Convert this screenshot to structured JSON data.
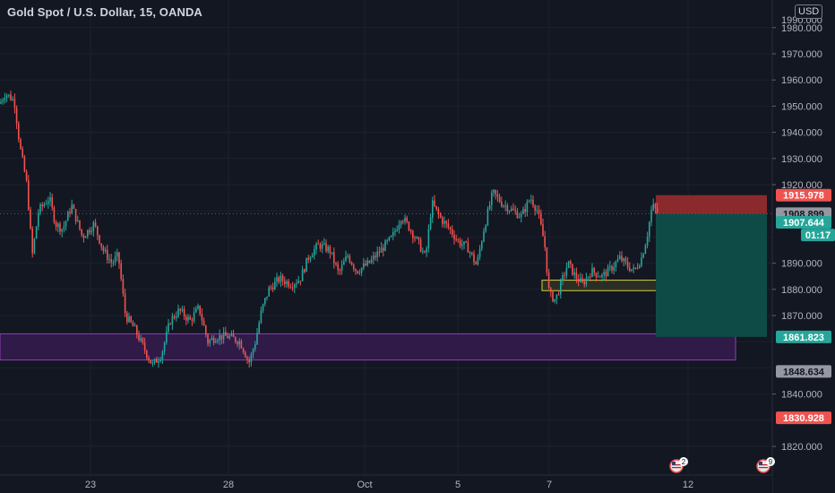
{
  "header": {
    "title": "Gold Spot / U.S. Dollar, 15, OANDA",
    "currency": "USD"
  },
  "colors": {
    "background": "#131722",
    "grid": "#1c2030",
    "up": "#26a69a",
    "down": "#ef5350",
    "stop_zone": "#8b2a2d",
    "target_zone": "#0e4b47",
    "support_zone": "#2f1a48",
    "support_border": "#8d3fb5",
    "entry_zone_border": "#d4d23a"
  },
  "chart_data": {
    "type": "candlestick",
    "symbol": "Gold Spot / U.S. Dollar",
    "interval": "15",
    "source": "OANDA",
    "ylim": [
      1812,
      1982
    ],
    "y_ticks": [
      1820,
      1830,
      1840,
      1850,
      1860,
      1870,
      1880,
      1890,
      1900,
      1910,
      1920,
      1930,
      1940,
      1950,
      1960,
      1970,
      1980
    ],
    "y_tick_labels": [
      "1820.000",
      "",
      "1840.000",
      "",
      "",
      "1870.000",
      "1880.000",
      "1890.000",
      "",
      "",
      "1920.000",
      "1930.000",
      "1940.000",
      "1950.000",
      "1960.000",
      "1970.000",
      "1980.000"
    ],
    "x_tick_labels": [
      "23",
      "28",
      "Oct",
      "5",
      "7",
      "12"
    ],
    "price_path": [
      {
        "t": 0,
        "p": 1951
      },
      {
        "t": 6,
        "p": 1955
      },
      {
        "t": 16,
        "p": 1952
      },
      {
        "t": 22,
        "p": 1935
      },
      {
        "t": 30,
        "p": 1920
      },
      {
        "t": 36,
        "p": 1893
      },
      {
        "t": 43,
        "p": 1910
      },
      {
        "t": 55,
        "p": 1915
      },
      {
        "t": 62,
        "p": 1905
      },
      {
        "t": 70,
        "p": 1903
      },
      {
        "t": 80,
        "p": 1912
      },
      {
        "t": 92,
        "p": 1900
      },
      {
        "t": 105,
        "p": 1905
      },
      {
        "t": 115,
        "p": 1895
      },
      {
        "t": 125,
        "p": 1890
      },
      {
        "t": 132,
        "p": 1893
      },
      {
        "t": 140,
        "p": 1870
      },
      {
        "t": 150,
        "p": 1865
      },
      {
        "t": 160,
        "p": 1858
      },
      {
        "t": 170,
        "p": 1851
      },
      {
        "t": 180,
        "p": 1855
      },
      {
        "t": 190,
        "p": 1868
      },
      {
        "t": 200,
        "p": 1872
      },
      {
        "t": 212,
        "p": 1868
      },
      {
        "t": 222,
        "p": 1873
      },
      {
        "t": 232,
        "p": 1860
      },
      {
        "t": 242,
        "p": 1862
      },
      {
        "t": 255,
        "p": 1862
      },
      {
        "t": 268,
        "p": 1860
      },
      {
        "t": 278,
        "p": 1852
      },
      {
        "t": 285,
        "p": 1860
      },
      {
        "t": 292,
        "p": 1872
      },
      {
        "t": 300,
        "p": 1880
      },
      {
        "t": 312,
        "p": 1884
      },
      {
        "t": 325,
        "p": 1882
      },
      {
        "t": 335,
        "p": 1884
      },
      {
        "t": 345,
        "p": 1893
      },
      {
        "t": 356,
        "p": 1897
      },
      {
        "t": 368,
        "p": 1895
      },
      {
        "t": 378,
        "p": 1886
      },
      {
        "t": 388,
        "p": 1893
      },
      {
        "t": 398,
        "p": 1887
      },
      {
        "t": 412,
        "p": 1890
      },
      {
        "t": 425,
        "p": 1895
      },
      {
        "t": 438,
        "p": 1900
      },
      {
        "t": 448,
        "p": 1908
      },
      {
        "t": 458,
        "p": 1903
      },
      {
        "t": 468,
        "p": 1897
      },
      {
        "t": 475,
        "p": 1892
      },
      {
        "t": 482,
        "p": 1913
      },
      {
        "t": 492,
        "p": 1907
      },
      {
        "t": 502,
        "p": 1903
      },
      {
        "t": 512,
        "p": 1898
      },
      {
        "t": 522,
        "p": 1896
      },
      {
        "t": 532,
        "p": 1889
      },
      {
        "t": 540,
        "p": 1903
      },
      {
        "t": 550,
        "p": 1917
      },
      {
        "t": 560,
        "p": 1913
      },
      {
        "t": 572,
        "p": 1910
      },
      {
        "t": 582,
        "p": 1908
      },
      {
        "t": 592,
        "p": 1915
      },
      {
        "t": 600,
        "p": 1910
      },
      {
        "t": 608,
        "p": 1897
      },
      {
        "t": 613,
        "p": 1878
      },
      {
        "t": 620,
        "p": 1876
      },
      {
        "t": 626,
        "p": 1882
      },
      {
        "t": 634,
        "p": 1890
      },
      {
        "t": 642,
        "p": 1885
      },
      {
        "t": 650,
        "p": 1882
      },
      {
        "t": 660,
        "p": 1887
      },
      {
        "t": 672,
        "p": 1885
      },
      {
        "t": 682,
        "p": 1888
      },
      {
        "t": 692,
        "p": 1892
      },
      {
        "t": 700,
        "p": 1889
      },
      {
        "t": 708,
        "p": 1887
      },
      {
        "t": 716,
        "p": 1892
      },
      {
        "t": 722,
        "p": 1900
      },
      {
        "t": 728,
        "p": 1912
      },
      {
        "t": 735,
        "p": 1908.9
      }
    ],
    "zones": [
      {
        "name": "support",
        "y1": 1863,
        "y2": 1853
      },
      {
        "name": "entry",
        "y1": 1883.5,
        "y2": 1879.5
      },
      {
        "name": "stop-loss",
        "y1": 1915.978,
        "y2": 1908.899
      },
      {
        "name": "take-profit",
        "y1": 1908.899,
        "y2": 1861.823
      }
    ],
    "current_price": 1908.899
  },
  "price_labels": [
    {
      "id": "stop-price",
      "value": "1915.978",
      "price": 1915.978,
      "bg": "#ef5350",
      "fg": "#ffffff"
    },
    {
      "id": "last-price",
      "value": "1908.899",
      "price": 1908.899,
      "bg": "#9598a1",
      "fg": "#131722"
    },
    {
      "id": "current-price",
      "value": "1907.644",
      "price": 1905.6,
      "bg": "#26a69a",
      "fg": "#ffffff"
    },
    {
      "id": "countdown",
      "value": "01:17",
      "price": 1900.8,
      "bg": "#26a69a",
      "fg": "#ffffff"
    },
    {
      "id": "target-price",
      "value": "1861.823",
      "price": 1861.823,
      "bg": "#26a69a",
      "fg": "#ffffff"
    },
    {
      "id": "support-price",
      "value": "1848.634",
      "price": 1848.634,
      "bg": "#9598a1",
      "fg": "#131722"
    },
    {
      "id": "lower-price",
      "value": "1830.928",
      "price": 1830.928,
      "bg": "#ef5350",
      "fg": "#ffffff"
    }
  ],
  "event_badges": [
    {
      "icon": "us-flag-icon",
      "count": "2"
    },
    {
      "icon": "us-flag-icon",
      "count": "9"
    }
  ]
}
